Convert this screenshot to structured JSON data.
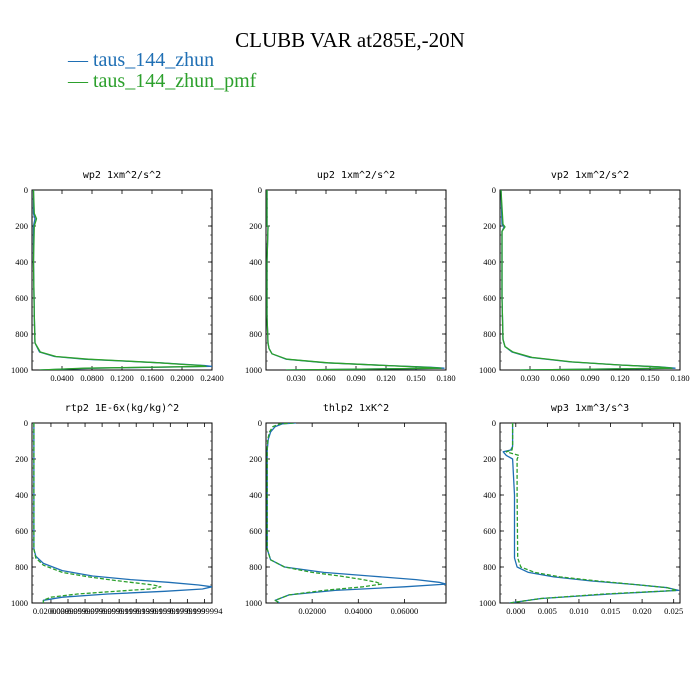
{
  "title": "CLUBB VAR at285E,-20N",
  "legend": [
    {
      "label": "taus_144_zhun",
      "color": "#1f6fb4"
    },
    {
      "label": "taus_144_zhun_pmf",
      "color": "#2ca02c"
    }
  ],
  "chart_data": [
    {
      "type": "line",
      "title": "wp2  1xm^2/s^2",
      "xlim": [
        0,
        0.24
      ],
      "ylim": [
        1000,
        0
      ],
      "xticks": [
        0.04,
        0.08,
        0.12,
        0.16,
        0.2,
        0.24
      ],
      "xticklabels": [
        "0.0400",
        "0.0800",
        "0.1200",
        "0.1600",
        "0.2000",
        "0.2400"
      ],
      "yticks": [
        0,
        200,
        400,
        600,
        800,
        1000
      ],
      "yticklabels": [
        "0",
        "200",
        "400",
        "600",
        "800",
        "1000"
      ],
      "series": [
        {
          "name": "taus_144_zhun",
          "color": "#1f6fb4",
          "dash": false,
          "x": [
            0.002,
            0.002,
            0.004,
            0.002,
            0.002,
            0.003,
            0.004,
            0.01,
            0.03,
            0.07,
            0.12,
            0.17,
            0.21,
            0.23,
            0.24,
            0.08,
            0.01
          ],
          "y": [
            0,
            130,
            160,
            200,
            400,
            700,
            850,
            900,
            925,
            940,
            950,
            960,
            970,
            975,
            980,
            990,
            1000
          ]
        },
        {
          "name": "taus_144_zhun_pmf",
          "color": "#2ca02c",
          "dash": false,
          "x": [
            0.002,
            0.003,
            0.006,
            0.003,
            0.002,
            0.003,
            0.004,
            0.011,
            0.032,
            0.075,
            0.125,
            0.17,
            0.205,
            0.225,
            0.232,
            0.07,
            0.01
          ],
          "y": [
            0,
            130,
            160,
            200,
            400,
            700,
            850,
            900,
            925,
            940,
            950,
            960,
            970,
            975,
            980,
            990,
            1000
          ]
        }
      ]
    },
    {
      "type": "line",
      "title": "up2  1xm^2/s^2",
      "xlim": [
        0,
        0.18
      ],
      "ylim": [
        1000,
        0
      ],
      "xticks": [
        0.03,
        0.06,
        0.09,
        0.12,
        0.15,
        0.18
      ],
      "xticklabels": [
        "0.030",
        "0.060",
        "0.090",
        "0.120",
        "0.150",
        "0.180"
      ],
      "yticks": [
        0,
        200,
        400,
        600,
        800,
        1000
      ],
      "yticklabels": [
        "0",
        "200",
        "400",
        "600",
        "800",
        "1000"
      ],
      "series": [
        {
          "name": "taus_144_zhun",
          "color": "#1f6fb4",
          "dash": false,
          "x": [
            0.001,
            0.001,
            0.002,
            0.001,
            0.001,
            0.002,
            0.003,
            0.006,
            0.02,
            0.06,
            0.12,
            0.165,
            0.178,
            0.02
          ],
          "y": [
            0,
            200,
            205,
            400,
            700,
            850,
            880,
            910,
            940,
            960,
            975,
            985,
            990,
            1000
          ]
        },
        {
          "name": "taus_144_zhun_pmf",
          "color": "#2ca02c",
          "dash": false,
          "x": [
            0.001,
            0.001,
            0.002,
            0.001,
            0.001,
            0.002,
            0.003,
            0.006,
            0.021,
            0.062,
            0.12,
            0.16,
            0.175,
            0.02
          ],
          "y": [
            0,
            200,
            205,
            400,
            700,
            850,
            880,
            910,
            940,
            960,
            975,
            985,
            990,
            1000
          ]
        }
      ]
    },
    {
      "type": "line",
      "title": "vp2  1xm^2/s^2",
      "xlim": [
        0,
        0.18
      ],
      "ylim": [
        1000,
        0
      ],
      "xticks": [
        0.03,
        0.06,
        0.09,
        0.12,
        0.15,
        0.18
      ],
      "xticklabels": [
        "0.030",
        "0.060",
        "0.090",
        "0.120",
        "0.150",
        "0.180"
      ],
      "yticks": [
        0,
        200,
        400,
        600,
        800,
        1000
      ],
      "yticklabels": [
        "0",
        "200",
        "400",
        "600",
        "800",
        "1000"
      ],
      "series": [
        {
          "name": "taus_144_zhun",
          "color": "#1f6fb4",
          "dash": false,
          "x": [
            0.001,
            0.002,
            0.004,
            0.002,
            0.002,
            0.003,
            0.005,
            0.012,
            0.03,
            0.07,
            0.12,
            0.16,
            0.175,
            0.02
          ],
          "y": [
            0,
            190,
            205,
            230,
            600,
            830,
            870,
            900,
            930,
            955,
            972,
            983,
            990,
            1000
          ]
        },
        {
          "name": "taus_144_zhun_pmf",
          "color": "#2ca02c",
          "dash": false,
          "x": [
            0.001,
            0.003,
            0.005,
            0.002,
            0.002,
            0.003,
            0.005,
            0.013,
            0.032,
            0.072,
            0.12,
            0.158,
            0.172,
            0.02
          ],
          "y": [
            0,
            190,
            205,
            230,
            600,
            830,
            870,
            900,
            930,
            955,
            972,
            983,
            990,
            1000
          ]
        }
      ]
    },
    {
      "type": "line",
      "title": "rtp2  1E-6x(kg/kg)^2",
      "xlim": [
        0,
        0.0475
      ],
      "ylim": [
        1000,
        0
      ],
      "xticks": [
        0.005,
        0.0095,
        0.014,
        0.0185,
        0.023,
        0.0275,
        0.032,
        0.0365,
        0.041,
        0.0455
      ],
      "xticklabels": [
        "0.0200000",
        "0.0399999",
        "0.0599999",
        "0.0799999",
        "0.0999999",
        "0.1199999",
        "0.1399999",
        "0.1599999",
        "0.1799999",
        "0.1999994"
      ],
      "yticks": [
        0,
        200,
        400,
        600,
        800,
        1000
      ],
      "yticklabels": [
        "0",
        "200",
        "400",
        "600",
        "800",
        "1000"
      ],
      "series": [
        {
          "name": "taus_144_zhun",
          "color": "#1f6fb4",
          "dash": false,
          "x": [
            0.0005,
            0.0005,
            0.001,
            0.003,
            0.008,
            0.016,
            0.026,
            0.036,
            0.044,
            0.0475,
            0.045,
            0.035,
            0.02,
            0.008,
            0.003,
            0.003
          ],
          "y": [
            0,
            700,
            740,
            780,
            820,
            850,
            870,
            885,
            900,
            910,
            922,
            935,
            950,
            968,
            985,
            1000
          ]
        },
        {
          "name": "taus_144_zhun_pmf",
          "color": "#2ca02c",
          "dash": true,
          "x": [
            0.0005,
            0.0005,
            0.001,
            0.003,
            0.008,
            0.015,
            0.022,
            0.028,
            0.032,
            0.034,
            0.031,
            0.022,
            0.012,
            0.005,
            0.003,
            0.003
          ],
          "y": [
            0,
            700,
            750,
            790,
            830,
            855,
            875,
            890,
            900,
            910,
            922,
            935,
            950,
            968,
            985,
            1000
          ]
        }
      ]
    },
    {
      "type": "line",
      "title": "thlp2  1xK^2",
      "xlim": [
        0,
        0.078
      ],
      "ylim": [
        1000,
        0
      ],
      "xticks": [
        0.02,
        0.04,
        0.06
      ],
      "xticklabels": [
        "0.02000",
        "0.04000",
        "0.06000"
      ],
      "yticks": [
        0,
        200,
        400,
        600,
        800,
        1000
      ],
      "yticklabels": [
        "0",
        "200",
        "400",
        "600",
        "800",
        "1000"
      ],
      "series": [
        {
          "name": "taus_144_zhun",
          "color": "#1f6fb4",
          "dash": false,
          "x": [
            0.013,
            0.007,
            0.004,
            0.002,
            0.001,
            0.0005,
            0.0005,
            0.002,
            0.008,
            0.025,
            0.045,
            0.065,
            0.075,
            0.078,
            0.06,
            0.03,
            0.01,
            0.004,
            0.006
          ],
          "y": [
            0,
            5,
            20,
            50,
            90,
            150,
            700,
            760,
            800,
            830,
            850,
            870,
            885,
            895,
            910,
            930,
            955,
            985,
            1000
          ]
        },
        {
          "name": "taus_144_zhun_pmf",
          "color": "#2ca02c",
          "dash": true,
          "x": [
            0.012,
            0.006,
            0.003,
            0.0015,
            0.0008,
            0.0005,
            0.0005,
            0.002,
            0.008,
            0.02,
            0.032,
            0.042,
            0.048,
            0.05,
            0.042,
            0.025,
            0.01,
            0.004,
            0.006
          ],
          "y": [
            0,
            5,
            20,
            50,
            90,
            150,
            700,
            760,
            800,
            830,
            850,
            870,
            885,
            895,
            910,
            930,
            955,
            985,
            1000
          ]
        }
      ]
    },
    {
      "type": "line",
      "title": "wp3  1xm^3/s^3",
      "xlim": [
        -0.0025,
        0.026
      ],
      "ylim": [
        1000,
        0
      ],
      "xticks": [
        0,
        0.005,
        0.01,
        0.015,
        0.02,
        0.025
      ],
      "xticklabels": [
        "0.000",
        "0.005",
        "0.010",
        "0.015",
        "0.020",
        "0.025"
      ],
      "yticks": [
        0,
        200,
        400,
        600,
        800,
        1000
      ],
      "yticklabels": [
        "0",
        "200",
        "400",
        "600",
        "800",
        "1000"
      ],
      "series": [
        {
          "name": "taus_144_zhun",
          "color": "#1f6fb4",
          "dash": false,
          "x": [
            -0.0005,
            -0.0005,
            -0.0008,
            -0.002,
            -0.0015,
            -0.0005,
            -0.0002,
            -0.0002,
            0.0002,
            0.002,
            0.006,
            0.012,
            0.019,
            0.024,
            0.0258,
            0.015,
            0.004,
            -0.001
          ],
          "y": [
            0,
            130,
            150,
            160,
            180,
            200,
            400,
            750,
            800,
            830,
            855,
            878,
            898,
            915,
            930,
            950,
            975,
            1000
          ]
        },
        {
          "name": "taus_144_zhun_pmf",
          "color": "#2ca02c",
          "dash": true,
          "x": [
            -0.0005,
            -0.0005,
            -0.0006,
            -0.0015,
            0.0005,
            0.0002,
            0.0002,
            0.0003,
            0.0008,
            0.003,
            0.007,
            0.013,
            0.019,
            0.024,
            0.0255,
            0.014,
            0.004,
            -0.001
          ],
          "y": [
            0,
            130,
            150,
            160,
            180,
            200,
            400,
            750,
            800,
            830,
            855,
            878,
            898,
            915,
            930,
            950,
            975,
            1000
          ]
        }
      ]
    }
  ]
}
